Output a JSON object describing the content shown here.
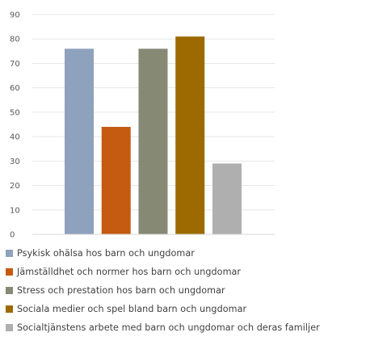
{
  "chart_data": {
    "type": "bar",
    "categories": [
      "Psykisk ohälsa hos barn och ungdomar",
      "Jämställdhet och normer hos barn och ungdomar",
      "Stress och prestation hos barn och ungdomar",
      "Sociala medier och spel bland barn och ungdomar",
      "Socialtjänstens arbete med barn och ungdomar och deras familjer"
    ],
    "values": [
      76,
      44,
      76,
      81,
      29
    ],
    "colors": [
      "#8ea1bd",
      "#c55a11",
      "#868a75",
      "#9c6a00",
      "#afafaf"
    ],
    "ylim": [
      0,
      90
    ],
    "yticks": [
      0,
      10,
      20,
      30,
      40,
      50,
      60,
      70,
      80,
      90
    ],
    "yticks_text": [
      "0",
      "10",
      "20",
      "30",
      "40",
      "50",
      "60",
      "70",
      "80",
      "90"
    ],
    "grid": true,
    "legend_position": "bottom",
    "title": "",
    "xlabel": "",
    "ylabel": ""
  }
}
